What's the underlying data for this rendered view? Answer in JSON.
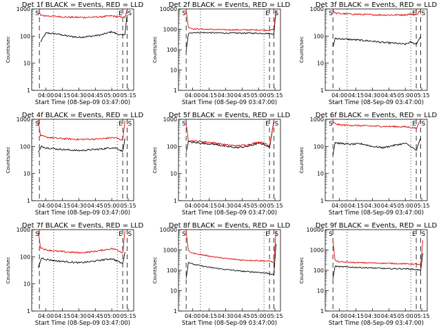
{
  "chart_data": [
    {
      "type": "line",
      "title": "Det 1f BLACK = Events, RED = LLD",
      "xlabel": "Start Time (08-Sep-09 03:47:00)",
      "ylabel": "Counts/sec",
      "yscale": "log",
      "ylim": [
        1,
        1000
      ],
      "y_ticks": [
        "1",
        "10",
        "100",
        "1000"
      ],
      "x_ticks": [
        "04:00",
        "04:15",
        "04:30",
        "04:45",
        "05:00",
        "05:15"
      ],
      "markers": [
        "S",
        "E",
        "S"
      ],
      "series": [
        {
          "color": "#000000",
          "x": [
            "03:55",
            "04:00",
            "04:10",
            "04:20",
            "04:30",
            "04:40",
            "04:50",
            "05:00",
            "05:05",
            "05:10",
            "05:12",
            "05:14"
          ],
          "values": [
            60,
            130,
            120,
            100,
            90,
            98,
            110,
            145,
            120,
            105,
            120,
            600
          ]
        },
        {
          "color": "#e00000",
          "x": [
            "03:54",
            "03:55",
            "04:00",
            "04:10",
            "04:20",
            "04:30",
            "04:40",
            "04:50",
            "05:00",
            "05:05",
            "05:10",
            "05:12",
            "05:14"
          ],
          "values": [
            800,
            580,
            560,
            530,
            500,
            490,
            495,
            510,
            560,
            520,
            500,
            480,
            900
          ]
        }
      ]
    },
    {
      "type": "line",
      "title": "Det 2f BLACK = Events, RED = LLD",
      "xlabel": "Start Time (08-Sep-09 03:47:00)",
      "ylabel": "Counts/sec",
      "yscale": "log",
      "ylim": [
        1,
        10000
      ],
      "y_ticks": [
        "1",
        "10",
        "100",
        "1000",
        "10000"
      ],
      "x_ticks": [
        "04:00",
        "04:15",
        "04:30",
        "04:45",
        "05:00",
        "05:15"
      ],
      "markers": [
        "S",
        "E",
        "S"
      ],
      "series": [
        {
          "color": "#000000",
          "x": [
            "03:54",
            "03:56",
            "04:00",
            "04:15",
            "04:30",
            "04:45",
            "05:00",
            "05:10",
            "05:14",
            "05:16"
          ],
          "values": [
            80,
            600,
            700,
            680,
            650,
            650,
            640,
            620,
            600,
            8000
          ]
        },
        {
          "color": "#e00000",
          "x": [
            "03:54",
            "03:56",
            "04:00",
            "04:15",
            "04:30",
            "04:45",
            "05:00",
            "05:10",
            "05:14",
            "05:16"
          ],
          "values": [
            9000,
            1300,
            1050,
            1000,
            950,
            940,
            930,
            900,
            1000,
            9000
          ]
        }
      ]
    },
    {
      "type": "line",
      "title": "Det 3f BLACK = Events, RED = LLD",
      "xlabel": "Start Time (08-Sep-09 03:47:00)",
      "ylabel": "Counts/sec",
      "yscale": "log",
      "ylim": [
        1,
        1000
      ],
      "y_ticks": [
        "1",
        "10",
        "100",
        "1000"
      ],
      "x_ticks": [
        "04:00",
        "04:15",
        "04:30",
        "04:45",
        "05:00",
        "05:15"
      ],
      "markers": [
        "S",
        "E",
        "S"
      ],
      "series": [
        {
          "color": "#000000",
          "x": [
            "03:54",
            "03:56",
            "04:00",
            "04:10",
            "04:20",
            "04:30",
            "04:40",
            "04:50",
            "05:00",
            "05:05",
            "05:10",
            "05:14"
          ],
          "values": [
            40,
            80,
            80,
            75,
            70,
            65,
            58,
            55,
            50,
            60,
            50,
            100
          ]
        },
        {
          "color": "#e00000",
          "x": [
            "03:54",
            "03:56",
            "04:00",
            "04:10",
            "04:20",
            "04:30",
            "04:40",
            "04:50",
            "05:00",
            "05:05",
            "05:10",
            "05:14"
          ],
          "values": [
            900,
            700,
            680,
            650,
            630,
            610,
            600,
            600,
            610,
            650,
            600,
            900
          ]
        }
      ]
    },
    {
      "type": "line",
      "title": "Det 4f BLACK = Events, RED = LLD",
      "xlabel": "Start Time (08-Sep-09 03:47:00)",
      "ylabel": "Counts/sec",
      "yscale": "log",
      "ylim": [
        1,
        1000
      ],
      "y_ticks": [
        "1",
        "10",
        "100",
        "1000"
      ],
      "x_ticks": [
        "04:00",
        "04:15",
        "04:30",
        "04:45",
        "05:00",
        "05:15"
      ],
      "markers": [
        "S",
        "E",
        "S"
      ],
      "series": [
        {
          "color": "#000000",
          "x": [
            "03:53",
            "03:56",
            "04:00",
            "04:10",
            "04:20",
            "04:30",
            "04:40",
            "04:50",
            "05:00",
            "05:05",
            "05:10",
            "05:12"
          ],
          "values": [
            60,
            100,
            90,
            80,
            75,
            70,
            75,
            80,
            90,
            85,
            65,
            200
          ]
        },
        {
          "color": "#e00000",
          "x": [
            "03:53",
            "03:55",
            "04:00",
            "04:10",
            "04:20",
            "04:30",
            "04:40",
            "04:50",
            "05:00",
            "05:05",
            "05:10",
            "05:12"
          ],
          "values": [
            900,
            250,
            220,
            200,
            190,
            180,
            185,
            190,
            210,
            200,
            170,
            900
          ]
        }
      ]
    },
    {
      "type": "line",
      "title": "Det 5f BLACK = Events, RED = LLD",
      "xlabel": "Start Time (08-Sep-09 03:47:00)",
      "ylabel": "Counts/sec",
      "yscale": "log",
      "ylim": [
        1,
        1000
      ],
      "y_ticks": [
        "1",
        "10",
        "100",
        "1000"
      ],
      "x_ticks": [
        "04:00",
        "04:15",
        "04:30",
        "04:45",
        "05:00",
        "05:15"
      ],
      "markers": [
        "S",
        "E",
        "S"
      ],
      "series": [
        {
          "color": "#000000",
          "x": [
            "03:54",
            "03:56",
            "04:00",
            "04:10",
            "04:20",
            "04:30",
            "04:40",
            "04:50",
            "05:00",
            "05:05",
            "05:10",
            "05:14"
          ],
          "values": [
            60,
            150,
            140,
            130,
            120,
            100,
            90,
            100,
            130,
            120,
            90,
            800
          ]
        },
        {
          "color": "#e00000",
          "x": [
            "03:54",
            "03:56",
            "04:00",
            "04:10",
            "04:20",
            "04:30",
            "04:40",
            "04:50",
            "05:00",
            "05:05",
            "05:10",
            "05:14"
          ],
          "values": [
            700,
            170,
            160,
            150,
            135,
            115,
            105,
            115,
            145,
            135,
            100,
            900
          ]
        }
      ]
    },
    {
      "type": "line",
      "title": "Det 6f BLACK = Events, RED = LLD",
      "xlabel": "Start Time (08-Sep-09 03:47:00)",
      "ylabel": "Counts/sec",
      "yscale": "log",
      "ylim": [
        1,
        1000
      ],
      "y_ticks": [
        "1",
        "10",
        "100",
        "1000"
      ],
      "x_ticks": [
        "04:00",
        "04:15",
        "04:30",
        "04:45",
        "05:00",
        "05:15"
      ],
      "markers": [
        "S",
        "E",
        "S"
      ],
      "series": [
        {
          "color": "#000000",
          "x": [
            "03:54",
            "03:56",
            "04:00",
            "04:10",
            "04:20",
            "04:30",
            "04:40",
            "04:50",
            "05:00",
            "05:05",
            "05:10",
            "05:14"
          ],
          "values": [
            50,
            140,
            130,
            120,
            125,
            100,
            90,
            110,
            130,
            100,
            70,
            200
          ]
        },
        {
          "color": "#e00000",
          "x": [
            "03:54",
            "03:56",
            "04:00",
            "04:10",
            "04:20",
            "04:30",
            "04:40",
            "04:50",
            "05:00",
            "05:05",
            "05:10",
            "05:14"
          ],
          "values": [
            800,
            700,
            620,
            600,
            580,
            560,
            550,
            540,
            530,
            500,
            470,
            900
          ]
        }
      ]
    },
    {
      "type": "line",
      "title": "Det 7f BLACK = Events, RED = LLD",
      "xlabel": "Start Time (08-Sep-09 03:47:00)",
      "ylabel": "Counts/sec",
      "yscale": "log",
      "ylim": [
        1,
        1000
      ],
      "y_ticks": [
        "1",
        "10",
        "100",
        "1000"
      ],
      "x_ticks": [
        "04:00",
        "04:15",
        "04:30",
        "04:45",
        "05:00",
        "05:15"
      ],
      "markers": [
        "S",
        "E",
        "S"
      ],
      "series": [
        {
          "color": "#000000",
          "x": [
            "03:53",
            "03:56",
            "04:00",
            "04:10",
            "04:20",
            "04:30",
            "04:40",
            "04:50",
            "05:00",
            "05:05",
            "05:10",
            "05:12"
          ],
          "values": [
            40,
            90,
            80,
            70,
            65,
            60,
            65,
            75,
            85,
            70,
            55,
            150
          ]
        },
        {
          "color": "#e00000",
          "x": [
            "03:53",
            "03:55",
            "04:00",
            "04:10",
            "04:20",
            "04:30",
            "04:40",
            "04:50",
            "05:00",
            "05:05",
            "05:10",
            "05:12"
          ],
          "values": [
            900,
            220,
            180,
            160,
            150,
            140,
            150,
            170,
            200,
            180,
            140,
            900
          ]
        }
      ]
    },
    {
      "type": "line",
      "title": "Det 8f BLACK = Events, RED = LLD",
      "xlabel": "Start Time (08-Sep-09 03:47:00)",
      "ylabel": "Counts/sec",
      "yscale": "log",
      "ylim": [
        1,
        10000
      ],
      "y_ticks": [
        "1",
        "10",
        "100",
        "1000",
        "10000"
      ],
      "x_ticks": [
        "04:00",
        "04:15",
        "04:30",
        "04:45",
        "05:00",
        "05:15"
      ],
      "markers": [
        "S",
        "E",
        "S"
      ],
      "series": [
        {
          "color": "#000000",
          "x": [
            "03:54",
            "03:56",
            "04:00",
            "04:15",
            "04:30",
            "04:45",
            "05:00",
            "05:10",
            "05:14",
            "05:16"
          ],
          "values": [
            40,
            250,
            200,
            140,
            110,
            90,
            80,
            70,
            60,
            2000
          ]
        },
        {
          "color": "#e00000",
          "x": [
            "03:54",
            "03:56",
            "04:00",
            "04:15",
            "04:30",
            "04:45",
            "05:00",
            "05:10",
            "05:14",
            "05:16"
          ],
          "values": [
            9000,
            900,
            700,
            500,
            380,
            320,
            300,
            280,
            250,
            9000
          ]
        }
      ]
    },
    {
      "type": "line",
      "title": "Det 9f BLACK = Events, RED = LLD",
      "xlabel": "Start Time (08-Sep-09 03:47:00)",
      "ylabel": "Counts/sec",
      "yscale": "log",
      "ylim": [
        1,
        10000
      ],
      "y_ticks": [
        "1",
        "10",
        "100",
        "1000",
        "10000"
      ],
      "x_ticks": [
        "04:00",
        "04:15",
        "04:30",
        "04:45",
        "05:00",
        "05:15"
      ],
      "markers": [
        "S",
        "E",
        "S"
      ],
      "series": [
        {
          "color": "#000000",
          "x": [
            "03:54",
            "03:56",
            "04:00",
            "04:15",
            "04:30",
            "04:45",
            "05:00",
            "05:10",
            "05:14",
            "05:16"
          ],
          "values": [
            40,
            160,
            150,
            140,
            130,
            120,
            120,
            110,
            100,
            700
          ]
        },
        {
          "color": "#e00000",
          "x": [
            "03:54",
            "03:56",
            "04:00",
            "04:15",
            "04:30",
            "04:45",
            "05:00",
            "05:10",
            "05:14",
            "05:16"
          ],
          "values": [
            3000,
            300,
            260,
            240,
            230,
            220,
            210,
            200,
            190,
            3000
          ]
        }
      ]
    }
  ]
}
